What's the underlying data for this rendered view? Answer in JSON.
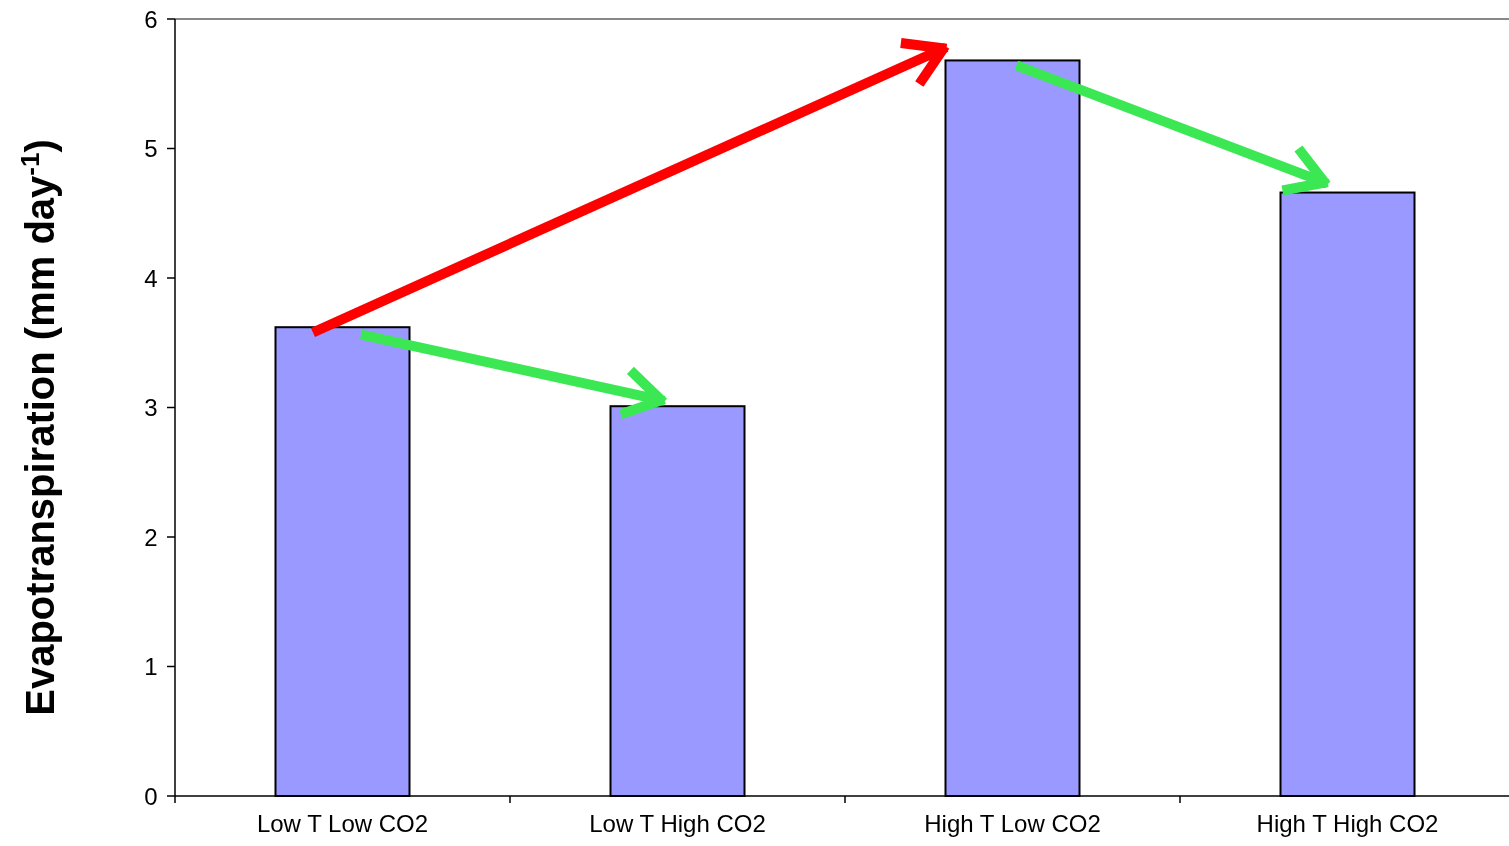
{
  "chart_data": {
    "type": "bar",
    "ylabel": "Evapotranspiration (mm day$^{-1}$)",
    "categories": [
      "Low T Low CO2",
      "Low T High CO2",
      "High T Low CO2",
      "High T High CO2"
    ],
    "values": [
      3.62,
      3.01,
      5.68,
      4.66
    ],
    "color": "#9999ff",
    "ylim": [
      0,
      6
    ],
    "yticks": [
      0,
      1,
      2,
      3,
      4,
      5,
      6
    ],
    "grid": false
  }
}
